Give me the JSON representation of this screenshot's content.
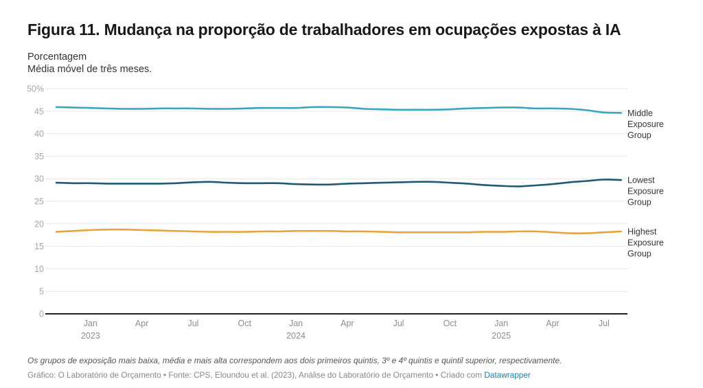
{
  "header": {
    "title": "Figura 11. Mudança na proporção de trabalhadores em ocupações expostas à IA",
    "subtitle_line1": "Porcentagem",
    "subtitle_line2": "Média móvel de três meses."
  },
  "footer": {
    "notes": "Os grupos de exposição mais baixa, média e mais alta correspondem aos dois primeiros quintis, 3º e 4º quintis e quintil superior, respectivamente.",
    "byline": "Gráfico: O Laboratório de Orçamento • Fonte: CPS, Eloundou et al. (2023), Análise do Laboratório de Orçamento • Criado com ",
    "tool_link": "Datawrapper"
  },
  "chart_data": {
    "type": "line",
    "title": "Figura 11. Mudança na proporção de trabalhadores em ocupações expostas à IA",
    "ylabel": "Porcentagem",
    "xlabel": "",
    "ylim": [
      0,
      50
    ],
    "yticks": [
      0,
      5,
      10,
      15,
      20,
      25,
      30,
      35,
      40,
      45,
      50
    ],
    "ytick_labels": [
      "0",
      "5",
      "10",
      "15",
      "20",
      "25",
      "30",
      "35",
      "40",
      "45",
      "50%"
    ],
    "grid": true,
    "legend": "direct-labels-right",
    "x_start": "2022-11",
    "x": [
      "2022-11",
      "2022-12",
      "2023-01",
      "2023-02",
      "2023-03",
      "2023-04",
      "2023-05",
      "2023-06",
      "2023-07",
      "2023-08",
      "2023-09",
      "2023-10",
      "2023-11",
      "2023-12",
      "2024-01",
      "2024-02",
      "2024-03",
      "2024-04",
      "2024-05",
      "2024-06",
      "2024-07",
      "2024-08",
      "2024-09",
      "2024-10",
      "2024-11",
      "2024-12",
      "2025-01",
      "2025-02",
      "2025-03",
      "2025-04",
      "2025-05",
      "2025-06",
      "2025-07",
      "2025-08"
    ],
    "xticks": [
      {
        "month": "2023-01",
        "label": "Jan",
        "year": "2023"
      },
      {
        "month": "2023-04",
        "label": "Apr",
        "year": ""
      },
      {
        "month": "2023-07",
        "label": "Jul",
        "year": ""
      },
      {
        "month": "2023-10",
        "label": "Oct",
        "year": ""
      },
      {
        "month": "2024-01",
        "label": "Jan",
        "year": "2024"
      },
      {
        "month": "2024-04",
        "label": "Apr",
        "year": ""
      },
      {
        "month": "2024-07",
        "label": "Jul",
        "year": ""
      },
      {
        "month": "2024-10",
        "label": "Oct",
        "year": ""
      },
      {
        "month": "2025-01",
        "label": "Jan",
        "year": "2025"
      },
      {
        "month": "2025-04",
        "label": "Apr",
        "year": ""
      },
      {
        "month": "2025-07",
        "label": "Jul",
        "year": ""
      }
    ],
    "series": [
      {
        "name": "Middle Exposure Group",
        "label_lines": [
          "Middle",
          "Exposure",
          "Group"
        ],
        "color": "#3aa5c3",
        "values": [
          45.9,
          45.8,
          45.7,
          45.6,
          45.5,
          45.5,
          45.6,
          45.6,
          45.6,
          45.5,
          45.5,
          45.6,
          45.7,
          45.7,
          45.7,
          45.9,
          45.9,
          45.8,
          45.5,
          45.4,
          45.3,
          45.3,
          45.3,
          45.4,
          45.6,
          45.7,
          45.8,
          45.8,
          45.6,
          45.6,
          45.5,
          45.2,
          44.7,
          44.6
        ]
      },
      {
        "name": "Lowest Exposure Group",
        "label_lines": [
          "Lowest",
          "Exposure",
          "Group"
        ],
        "color": "#1f5a73",
        "values": [
          29.1,
          29.0,
          29.0,
          28.9,
          28.9,
          28.9,
          28.9,
          29.0,
          29.2,
          29.3,
          29.1,
          29.0,
          29.0,
          29.0,
          28.8,
          28.7,
          28.7,
          28.9,
          29.0,
          29.1,
          29.2,
          29.3,
          29.3,
          29.1,
          28.9,
          28.6,
          28.4,
          28.3,
          28.5,
          28.8,
          29.2,
          29.5,
          29.8,
          29.7
        ]
      },
      {
        "name": "Highest Exposure Group",
        "label_lines": [
          "Highest",
          "Exposure",
          "Group"
        ],
        "color": "#e8a33d",
        "values": [
          18.2,
          18.4,
          18.6,
          18.7,
          18.7,
          18.6,
          18.5,
          18.4,
          18.3,
          18.2,
          18.2,
          18.2,
          18.3,
          18.3,
          18.4,
          18.4,
          18.4,
          18.3,
          18.3,
          18.2,
          18.1,
          18.1,
          18.1,
          18.1,
          18.1,
          18.2,
          18.2,
          18.3,
          18.3,
          18.1,
          17.9,
          17.9,
          18.1,
          18.3
        ]
      }
    ]
  }
}
